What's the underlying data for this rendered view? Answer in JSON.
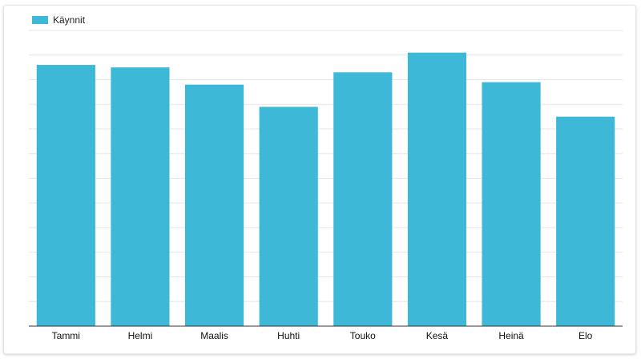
{
  "chart_data": {
    "type": "bar",
    "categories": [
      "Tammi",
      "Helmi",
      "Maalis",
      "Huhti",
      "Touko",
      "Kesä",
      "Heinä",
      "Elo"
    ],
    "series": [
      {
        "name": "Käynnit",
        "values": [
          10.6,
          10.5,
          9.8,
          8.9,
          10.3,
          11.1,
          9.9,
          8.5
        ],
        "color": "#3db8d6"
      }
    ],
    "ylim": [
      0,
      12
    ],
    "grid": true,
    "legend_position": "top-left",
    "colors": {
      "bar": "#3db8d6",
      "grid": "#e6e6e6",
      "axis": "#333333"
    }
  }
}
